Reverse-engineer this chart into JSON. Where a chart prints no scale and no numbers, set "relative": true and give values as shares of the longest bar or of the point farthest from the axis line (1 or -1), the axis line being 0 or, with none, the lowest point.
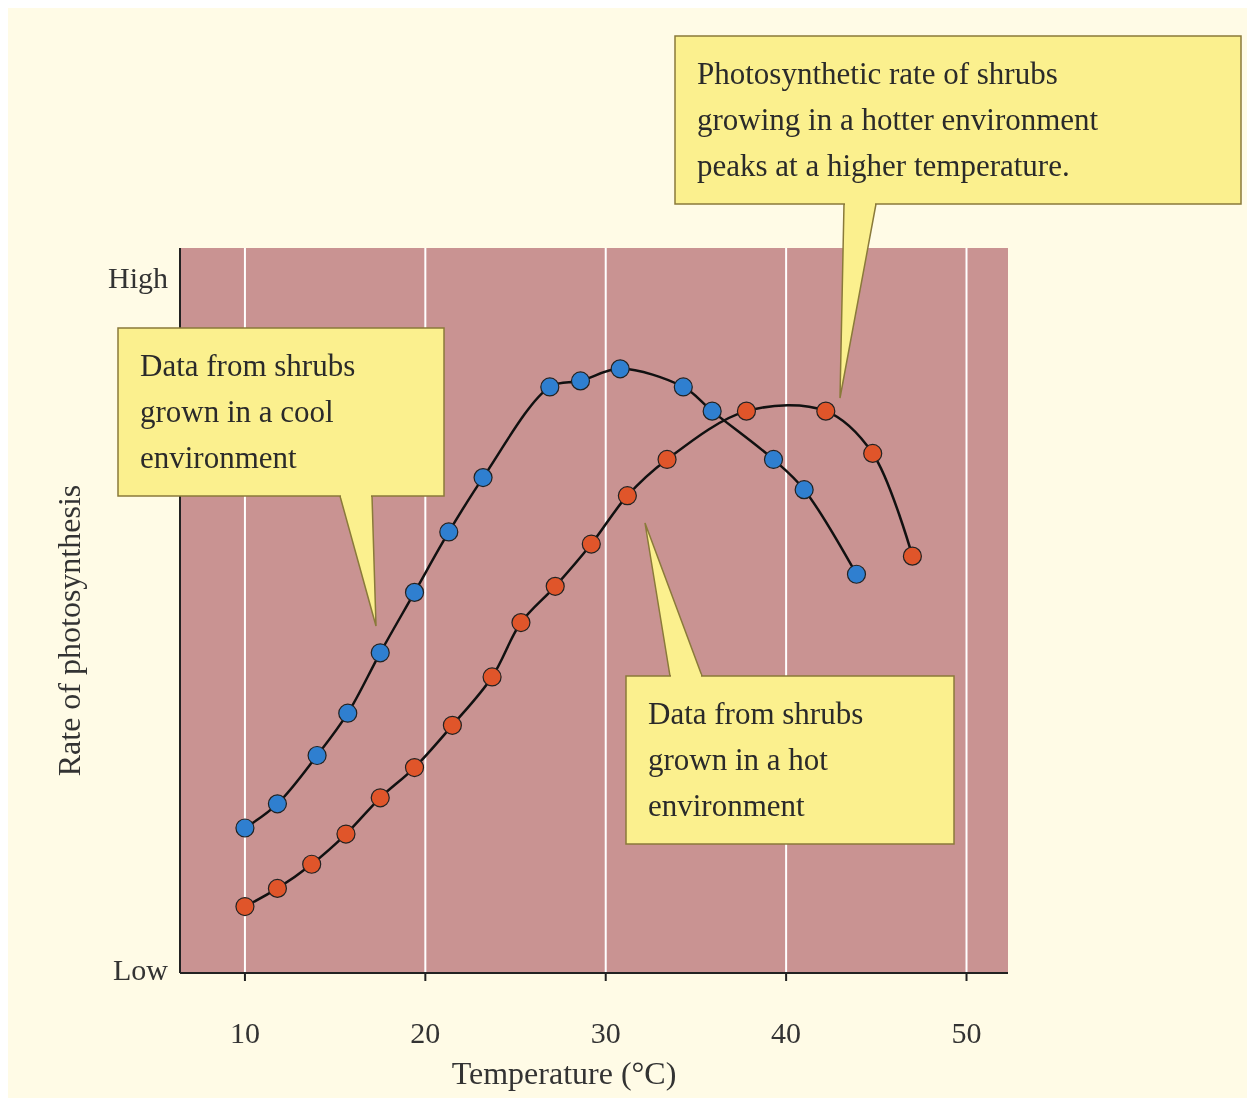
{
  "chart_data": {
    "type": "line",
    "xlabel": "Temperature (°C)",
    "ylabel": "Rate of photosynthesis",
    "relative": true,
    "xlim": [
      6.4,
      52.3
    ],
    "xticks": [
      10,
      20,
      30,
      40,
      50
    ],
    "grid": "x",
    "marker": "circle",
    "line_style": "solid",
    "series": [
      {
        "color": "#2f7fd0",
        "x": [
          10,
          11.8,
          14.0,
          15.7,
          17.5,
          19.4,
          21.3,
          23.2,
          26.9,
          28.6,
          30.8,
          34.3,
          35.9,
          39.3,
          41.0,
          43.9
        ],
        "values": [
          0.24,
          0.28,
          0.36,
          0.43,
          0.53,
          0.63,
          0.73,
          0.82,
          0.97,
          0.98,
          1.0,
          0.97,
          0.93,
          0.85,
          0.8,
          0.66
        ]
      },
      {
        "color": "#e0552a",
        "x": [
          10,
          11.8,
          13.7,
          15.6,
          17.5,
          19.4,
          21.5,
          23.7,
          25.3,
          27.2,
          29.2,
          31.2,
          33.4,
          37.8,
          42.2,
          44.8,
          47.0
        ],
        "values": [
          0.11,
          0.14,
          0.18,
          0.23,
          0.29,
          0.34,
          0.41,
          0.49,
          0.58,
          0.64,
          0.71,
          0.79,
          0.85,
          0.93,
          0.93,
          0.86,
          0.69
        ]
      }
    ],
    "annotations": [
      "Photosynthetic rate of shrubs growing in a hotter environment peaks at a higher temperature.",
      "Data from shrubs grown in a cool environment",
      "Data from shrubs grown in a hot environment",
      "High",
      "Low"
    ]
  }
}
